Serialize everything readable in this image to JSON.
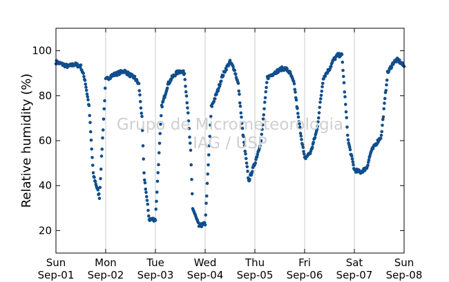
{
  "chart_data": {
    "type": "scatter",
    "title": "",
    "ylabel": "Relative humidity (%)",
    "xlabel": "",
    "ylim": [
      10,
      110
    ],
    "yticks": [
      20,
      40,
      60,
      80,
      100
    ],
    "x_days": [
      1,
      8
    ],
    "x_ticks": [
      {
        "day": "Sun",
        "date": "Sep-01"
      },
      {
        "day": "Mon",
        "date": "Sep-02"
      },
      {
        "day": "Tue",
        "date": "Sep-03"
      },
      {
        "day": "Wed",
        "date": "Sep-04"
      },
      {
        "day": "Thu",
        "date": "Sep-05"
      },
      {
        "day": "Fri",
        "date": "Sep-06"
      },
      {
        "day": "Sat",
        "date": "Sep-07"
      },
      {
        "day": "Sun",
        "date": "Sep-08"
      }
    ],
    "vertical_grid": true,
    "horizontal_grid": false,
    "marker_color": "#114e8b",
    "series": [
      {
        "x": [
          "2019-09-01 00:00",
          "2019-09-01 03:00",
          "2019-09-01 06:00",
          "2019-09-01 09:00",
          "2019-09-01 12:00",
          "2019-09-01 14:00",
          "2019-09-01 16:00",
          "2019-09-01 18:00",
          "2019-09-01 21:00",
          "2019-09-02 00:00",
          "2019-09-02 03:00",
          "2019-09-02 06:00",
          "2019-09-02 09:00",
          "2019-09-02 10:30",
          "2019-09-02 12:00",
          "2019-09-02 14:00",
          "2019-09-02 16:00",
          "2019-09-02 17:30",
          "2019-09-02 18:30",
          "2019-09-02 21:00",
          "2019-09-03 00:00",
          "2019-09-03 03:00",
          "2019-09-03 06:00",
          "2019-09-03 08:00",
          "2019-09-03 10:00",
          "2019-09-03 12:00",
          "2019-09-03 14:00",
          "2019-09-03 15:30",
          "2019-09-03 17:00",
          "2019-09-03 18:00",
          "2019-09-03 21:00",
          "2019-09-04 00:00",
          "2019-09-04 03:00",
          "2019-09-04 06:00",
          "2019-09-04 08:00",
          "2019-09-04 10:00",
          "2019-09-04 12:00",
          "2019-09-04 14:00",
          "2019-09-04 16:00",
          "2019-09-04 18:00",
          "2019-09-04 21:00",
          "2019-09-05 00:00",
          "2019-09-05 03:00",
          "2019-09-05 06:00",
          "2019-09-05 09:00",
          "2019-09-05 11:00",
          "2019-09-05 13:00",
          "2019-09-05 15:00",
          "2019-09-05 17:00",
          "2019-09-05 19:00",
          "2019-09-05 21:00",
          "2019-09-06 00:00",
          "2019-09-06 03:00",
          "2019-09-06 06:00",
          "2019-09-06 09:00",
          "2019-09-06 12:00",
          "2019-09-06 14:00",
          "2019-09-06 16:00",
          "2019-09-06 18:00",
          "2019-09-06 21:00",
          "2019-09-07 00:00",
          "2019-09-07 03:00",
          "2019-09-07 06:00",
          "2019-09-07 08:00",
          "2019-09-07 10:00",
          "2019-09-07 13:00",
          "2019-09-07 16:00",
          "2019-09-07 19:00",
          "2019-09-07 21:00",
          "2019-09-08 00:00"
        ],
        "y": [
          95,
          94,
          93,
          94,
          93,
          87,
          75,
          45,
          35,
          87,
          89,
          90,
          91,
          90,
          89,
          88,
          85,
          70,
          45,
          25,
          25,
          75,
          85,
          88,
          90,
          91,
          90,
          75,
          55,
          30,
          22,
          23,
          75,
          82,
          88,
          92,
          95,
          92,
          85,
          65,
          42,
          50,
          60,
          88,
          90,
          91,
          92,
          92,
          90,
          85,
          70,
          52,
          55,
          65,
          88,
          92,
          96,
          98,
          98,
          60,
          47,
          46,
          48,
          55,
          58,
          62,
          90,
          95,
          96,
          93
        ]
      }
    ]
  },
  "watermark": {
    "line1": "Grupo de Micrometeorologia",
    "line2": "IAG / USP"
  }
}
